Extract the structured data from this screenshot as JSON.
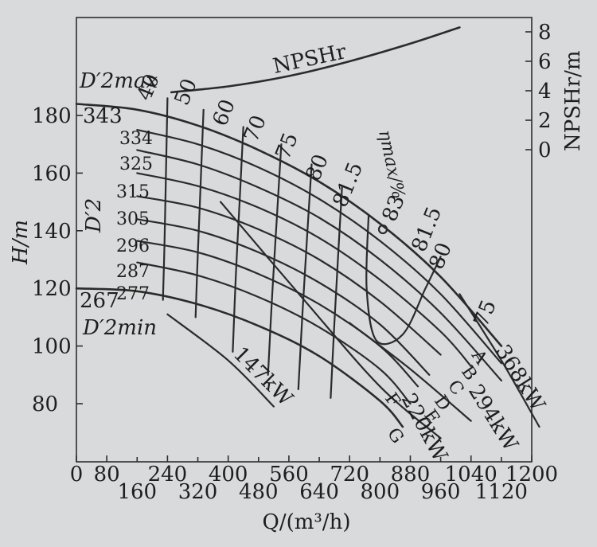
{
  "chart_data": {
    "type": "line",
    "title": "",
    "xlabel": "Q/(m³/h)",
    "ylabel": "H/m",
    "ylabel_right": "NPSHr/m",
    "x_ticks_row1": [
      "0",
      "80",
      "240",
      "400",
      "560",
      "720",
      "880",
      "1040",
      "1200"
    ],
    "x_ticks_row2": [
      "160",
      "320",
      "480",
      "640",
      "800",
      "960",
      "1120"
    ],
    "y_ticks": [
      "80",
      "100",
      "120",
      "140",
      "160",
      "180"
    ],
    "y2_ticks": [
      "0",
      "2",
      "4",
      "6",
      "8"
    ],
    "xlim": [
      0,
      1200
    ],
    "ylim": [
      60,
      200
    ],
    "y2lim": [
      -4,
      8
    ],
    "npshr_curve": {
      "label": "NPSHr",
      "points": [
        [
          250,
          3.9
        ],
        [
          400,
          4.3
        ],
        [
          560,
          5.0
        ],
        [
          720,
          6.0
        ],
        [
          880,
          7.2
        ],
        [
          1010,
          8.3
        ]
      ]
    },
    "impeller_curves": [
      {
        "label": "343",
        "points": [
          [
            0,
            184
          ],
          [
            160,
            182
          ],
          [
            320,
            176.5
          ],
          [
            480,
            168
          ],
          [
            640,
            157
          ],
          [
            800,
            142.5
          ],
          [
            960,
            124
          ],
          [
            1120,
            100
          ]
        ]
      },
      {
        "label": "334",
        "points": [
          [
            160,
            175
          ],
          [
            320,
            170
          ],
          [
            480,
            162
          ],
          [
            640,
            151
          ],
          [
            800,
            136.5
          ],
          [
            960,
            118
          ],
          [
            1120,
            94
          ]
        ]
      },
      {
        "label": "325",
        "points": [
          [
            160,
            168
          ],
          [
            320,
            163
          ],
          [
            480,
            155
          ],
          [
            640,
            144.5
          ],
          [
            800,
            130
          ],
          [
            960,
            111.5
          ],
          [
            1120,
            88
          ]
        ]
      },
      {
        "label": "315",
        "points": [
          [
            160,
            160
          ],
          [
            320,
            155.5
          ],
          [
            480,
            148
          ],
          [
            640,
            137.5
          ],
          [
            800,
            123
          ],
          [
            960,
            105
          ],
          [
            1040,
            93
          ]
        ]
      },
      {
        "label": "305",
        "points": [
          [
            160,
            152
          ],
          [
            320,
            148
          ],
          [
            480,
            140.5
          ],
          [
            640,
            130
          ],
          [
            800,
            115.5
          ],
          [
            960,
            97
          ]
        ]
      },
      {
        "label": "296",
        "points": [
          [
            160,
            144
          ],
          [
            320,
            140
          ],
          [
            480,
            132.5
          ],
          [
            640,
            122
          ],
          [
            800,
            107.5
          ],
          [
            930,
            90
          ]
        ]
      },
      {
        "label": "287",
        "points": [
          [
            160,
            136.5
          ],
          [
            320,
            132.5
          ],
          [
            480,
            125
          ],
          [
            640,
            114.5
          ],
          [
            800,
            100
          ],
          [
            900,
            86
          ]
        ]
      },
      {
        "label": "277",
        "points": [
          [
            160,
            129
          ],
          [
            320,
            124.5
          ],
          [
            480,
            117
          ],
          [
            640,
            106.5
          ],
          [
            800,
            92
          ],
          [
            880,
            80
          ]
        ]
      },
      {
        "label": "267",
        "points": [
          [
            0,
            120
          ],
          [
            160,
            119
          ],
          [
            320,
            114.5
          ],
          [
            480,
            107
          ],
          [
            640,
            96.5
          ],
          [
            800,
            81
          ],
          [
            860,
            72
          ]
        ]
      }
    ],
    "curve_end_letters": [
      "A",
      "B",
      "C",
      "D",
      "E",
      "F",
      "G"
    ],
    "efficiency_contours": [
      {
        "label": "40",
        "points": [
          [
            240,
            186
          ],
          [
            236,
            160
          ],
          [
            232,
            135
          ],
          [
            228,
            116
          ]
        ]
      },
      {
        "label": "50",
        "points": [
          [
            335,
            182
          ],
          [
            328,
            158
          ],
          [
            320,
            132
          ],
          [
            314,
            110
          ]
        ]
      },
      {
        "label": "60",
        "points": [
          [
            440,
            176
          ],
          [
            430,
            150
          ],
          [
            420,
            124
          ],
          [
            412,
            98
          ]
        ]
      },
      {
        "label": "70",
        "points": [
          [
            540,
            170
          ],
          [
            528,
            144
          ],
          [
            516,
            118
          ],
          [
            505,
            90
          ]
        ]
      },
      {
        "label": "75",
        "points": [
          [
            620,
            163
          ],
          [
            608,
            138
          ],
          [
            596,
            112
          ],
          [
            585,
            85
          ]
        ]
      },
      {
        "label": "80",
        "points": [
          [
            700,
            155
          ],
          [
            690,
            132
          ],
          [
            680,
            108
          ],
          [
            670,
            82
          ]
        ]
      },
      {
        "label": "81.5",
        "points": [
          [
            770,
            145
          ],
          [
            765,
            120
          ],
          [
            790,
            102
          ],
          [
            860,
            104
          ],
          [
            920,
            120
          ],
          [
            960,
            131
          ]
        ]
      }
    ],
    "efficiency_labels": {
      "max": "83",
      "right_815": "81.5",
      "right_80": "80",
      "right_75": "75",
      "eta_max": "ηmax/%"
    },
    "power_lines": [
      {
        "label": "147kW",
        "points": [
          [
            240,
            111
          ],
          [
            400,
            95
          ],
          [
            520,
            79
          ]
        ]
      },
      {
        "label": "220kW",
        "points": [
          [
            380,
            150
          ],
          [
            600,
            116
          ],
          [
            800,
            86
          ],
          [
            960,
            68
          ]
        ]
      },
      {
        "label": "294kW",
        "points": [
          [
            720,
            108
          ],
          [
            880,
            92
          ],
          [
            1040,
            74
          ]
        ]
      },
      {
        "label": "368kW",
        "points": [
          [
            1010,
            118
          ],
          [
            1120,
            95
          ],
          [
            1220,
            72
          ]
        ]
      }
    ],
    "annotations": {
      "d2max": "D′2max",
      "d2min": "D′2min",
      "d2": "D′2"
    }
  }
}
